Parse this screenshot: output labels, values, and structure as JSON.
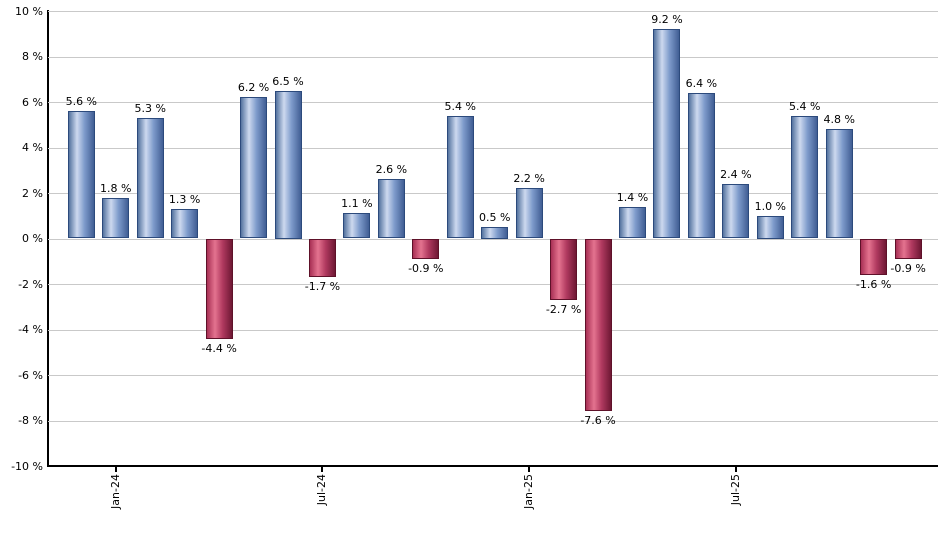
{
  "chart_data": {
    "type": "bar",
    "title": "",
    "xlabel": "",
    "ylabel": "",
    "ylim": [
      -10,
      10
    ],
    "grid": true,
    "gridline_color": "#c9c9c9",
    "axis_color": "#000000",
    "label_color": "#000000",
    "background_color": "#ffffff",
    "values": [
      5.6,
      1.8,
      5.3,
      1.3,
      -4.4,
      6.2,
      6.5,
      -1.7,
      1.1,
      2.6,
      -0.9,
      5.4,
      0.5,
      2.2,
      -2.7,
      -7.6,
      1.4,
      9.2,
      6.4,
      2.4,
      1.0,
      5.4,
      4.8,
      -1.6,
      -0.9
    ],
    "bar_labels": [
      "5.6 %",
      "1.8 %",
      "5.3 %",
      "1.3 %",
      "-4.4 %",
      "6.2 %",
      "6.5 %",
      "-1.7 %",
      "1.1 %",
      "2.6 %",
      "-0.9 %",
      "5.4 %",
      "0.5 %",
      "2.2 %",
      "-2.7 %",
      "-7.6 %",
      "1.4 %",
      "9.2 %",
      "6.4 %",
      "2.4 %",
      "1.0 %",
      "5.4 %",
      "4.8 %",
      "-1.6 %",
      "-0.9 %"
    ],
    "positive_bar": {
      "border": "#2c4a7c",
      "gradient": [
        "#54739f",
        "#cdd9ef",
        "#7e9bcb",
        "#415e94"
      ]
    },
    "negative_bar": {
      "border": "#5e1129",
      "gradient": [
        "#a83055",
        "#e4738f",
        "#b13a60",
        "#6f1834"
      ]
    },
    "y_axis": {
      "ticks": [
        {
          "value": 10,
          "label": "10 %"
        },
        {
          "value": 8,
          "label": "8 %"
        },
        {
          "value": 6,
          "label": "6 %"
        },
        {
          "value": 4,
          "label": "4 %"
        },
        {
          "value": 2,
          "label": "2 %"
        },
        {
          "value": 0,
          "label": "0 %"
        },
        {
          "value": -2,
          "label": "-2 %"
        },
        {
          "value": -4,
          "label": "-4 %"
        },
        {
          "value": -6,
          "label": "-6 %"
        },
        {
          "value": -8,
          "label": "-8 %"
        },
        {
          "value": -10,
          "label": "-10 %"
        }
      ]
    },
    "x_axis": {
      "ticks": [
        {
          "index": 1,
          "label": "Jan-24"
        },
        {
          "index": 7,
          "label": "Jul-24"
        },
        {
          "index": 13,
          "label": "Jan-25"
        },
        {
          "index": 19,
          "label": "Jul-25"
        }
      ]
    }
  }
}
